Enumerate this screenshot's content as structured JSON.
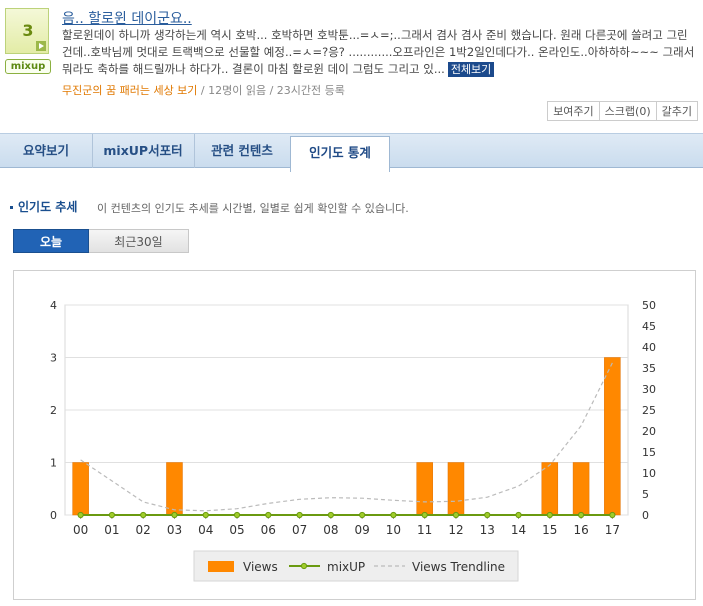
{
  "post": {
    "rank": "3",
    "logo_text": "mixup",
    "title": "음.. 할로윈 데이군요..",
    "description": "할로윈데이 하니까 생각하는게 역시 호박... 호박하면 호박툰...=ㅅ=;..그래서 겸사 겸사 준비 했습니다. 원래 다른곳에 쓸려고 그린건데..호박님께 멋대로 트랙백으로 선물할 예정..=ㅅ=?응? ............오프라인은 1박2일인데다가.. 온라인도..아하하하~~~ 그래서 뭐라도 축하를 해드릴까나 하다가.. 결론이 마침 할로윈 데이 그럼도 그리고 있...",
    "more_label": "전체보기",
    "author": "무진군의 꿈 패러는 세상 보기",
    "meta_rest": " / 12명이 읽음 / 23시간전 등록"
  },
  "actions": [
    "보여주기",
    "스크랩(0)",
    "갈추기"
  ],
  "tabs": [
    "요약보기",
    "mixUP서포터",
    "관련 컨텐츠",
    "인기도 통계"
  ],
  "section": {
    "title": "인기도 추세",
    "subtitle": "이 컨텐츠의 인기도 추세를 시간별, 일별로 쉽게 확인할 수 있습니다."
  },
  "period": {
    "today": "오늘",
    "last30": "최근30일"
  },
  "colors": {
    "views": "#ff8800",
    "mixup": "#6a9a10",
    "trend": "#bbbbbb"
  },
  "chart_data": {
    "type": "bar",
    "categories": [
      "00",
      "01",
      "02",
      "03",
      "04",
      "05",
      "06",
      "07",
      "08",
      "09",
      "10",
      "11",
      "12",
      "13",
      "14",
      "15",
      "16",
      "17"
    ],
    "series": [
      {
        "name": "Views",
        "type": "bar",
        "axis": "left",
        "values": [
          1,
          0,
          0,
          1,
          0,
          0,
          0,
          0,
          0,
          0,
          0,
          1,
          1,
          0,
          0,
          1,
          1,
          3
        ]
      },
      {
        "name": "mixUP",
        "type": "line",
        "axis": "right",
        "values": [
          0,
          0,
          0,
          0,
          0,
          0,
          0,
          0,
          0,
          0,
          0,
          0,
          0,
          0,
          0,
          0,
          0,
          0
        ]
      },
      {
        "name": "Views Trendline",
        "type": "line",
        "style": "dashed",
        "axis": "left",
        "values": [
          1.05,
          0.65,
          0.25,
          0.1,
          0.08,
          0.12,
          0.22,
          0.3,
          0.33,
          0.32,
          0.28,
          0.25,
          0.26,
          0.34,
          0.55,
          0.95,
          1.7,
          2.9
        ]
      }
    ],
    "yaxis_left": {
      "min": 0,
      "max": 4,
      "ticks": [
        "0",
        "1",
        "2",
        "3",
        "4"
      ]
    },
    "yaxis_right": {
      "min": 0,
      "max": 50,
      "ticks": [
        "0",
        "5",
        "10",
        "15",
        "20",
        "25",
        "30",
        "35",
        "40",
        "45",
        "50"
      ]
    },
    "grid": true,
    "legend_position": "bottom"
  }
}
